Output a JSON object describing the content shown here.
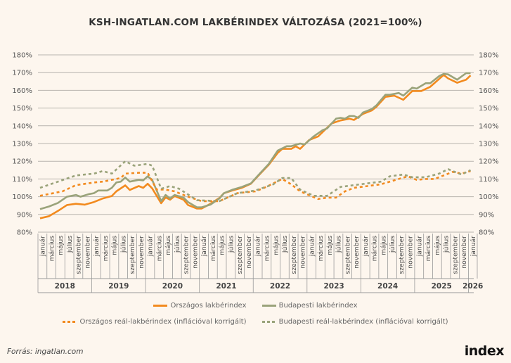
{
  "chart_data": {
    "type": "line",
    "title": "KSH-INGATLAN.COM LAKBÉRINDEX VÁLTOZÁSA (2021=100%)",
    "x_start": "2018-01",
    "x_end": "2026-01",
    "ylim": [
      80,
      180
    ],
    "y_ticks": [
      "80%",
      "90%",
      "100%",
      "110%",
      "120%",
      "130%",
      "140%",
      "150%",
      "160%",
      "170%",
      "180%"
    ],
    "grid": "horizontal",
    "legend_placement": "bottom",
    "month_labels": [
      "január",
      "március",
      "május",
      "július",
      "szeptember",
      "november"
    ],
    "years": [
      "2018",
      "2019",
      "2020",
      "2021",
      "2022",
      "2023",
      "2024",
      "2025",
      "2026"
    ],
    "series": [
      {
        "name": "Országos lakbérindex",
        "color": "#f28a1e",
        "style": "solid",
        "points": [
          [
            "2018-01",
            87.8
          ],
          [
            "2018-03",
            89
          ],
          [
            "2018-05",
            92
          ],
          [
            "2018-07",
            95.3
          ],
          [
            "2018-09",
            96
          ],
          [
            "2018-11",
            95.5
          ],
          [
            "2019-01",
            97
          ],
          [
            "2019-03",
            99
          ],
          [
            "2019-05",
            100.4
          ],
          [
            "2019-06",
            103
          ],
          [
            "2019-08",
            106.4
          ],
          [
            "2019-09",
            103.8
          ],
          [
            "2019-11",
            106
          ],
          [
            "2019-12",
            105
          ],
          [
            "2020-01",
            107.3
          ],
          [
            "2020-02",
            104.7
          ],
          [
            "2020-04",
            96.3
          ],
          [
            "2020-05",
            99.6
          ],
          [
            "2020-06",
            98.3
          ],
          [
            "2020-07",
            100.4
          ],
          [
            "2020-09",
            98.3
          ],
          [
            "2020-10",
            95.3
          ],
          [
            "2020-12",
            93.3
          ],
          [
            "2021-01",
            93.3
          ],
          [
            "2021-03",
            96
          ],
          [
            "2021-05",
            99.3
          ],
          [
            "2021-06",
            102
          ],
          [
            "2021-08",
            103.6
          ],
          [
            "2021-10",
            105
          ],
          [
            "2021-12",
            107.3
          ],
          [
            "2022-02",
            112.7
          ],
          [
            "2022-04",
            118
          ],
          [
            "2022-06",
            124.7
          ],
          [
            "2022-07",
            127
          ],
          [
            "2022-09",
            127
          ],
          [
            "2022-10",
            128.4
          ],
          [
            "2022-11",
            127
          ],
          [
            "2023-01",
            132
          ],
          [
            "2023-03",
            134
          ],
          [
            "2023-06",
            141.3
          ],
          [
            "2023-08",
            143
          ],
          [
            "2023-10",
            144
          ],
          [
            "2023-11",
            143.3
          ],
          [
            "2024-01",
            146.7
          ],
          [
            "2024-03",
            148.7
          ],
          [
            "2024-04",
            150.7
          ],
          [
            "2024-06",
            156.3
          ],
          [
            "2024-08",
            157
          ],
          [
            "2024-10",
            154.7
          ],
          [
            "2024-12",
            159.6
          ],
          [
            "2025-02",
            159.6
          ],
          [
            "2025-04",
            162
          ],
          [
            "2025-07",
            168.7
          ],
          [
            "2025-08",
            166.7
          ],
          [
            "2025-10",
            164.3
          ],
          [
            "2025-12",
            166
          ],
          [
            "2026-01",
            168.4
          ]
        ]
      },
      {
        "name": "Budapesti lakbérindex",
        "color": "#9aa37a",
        "style": "solid",
        "points": [
          [
            "2018-01",
            93
          ],
          [
            "2018-03",
            94.5
          ],
          [
            "2018-05",
            96.5
          ],
          [
            "2018-07",
            100
          ],
          [
            "2018-09",
            101
          ],
          [
            "2018-10",
            100
          ],
          [
            "2018-12",
            101.5
          ],
          [
            "2019-01",
            102
          ],
          [
            "2019-02",
            103.5
          ],
          [
            "2019-04",
            103.5
          ],
          [
            "2019-05",
            105
          ],
          [
            "2019-06",
            108
          ],
          [
            "2019-07",
            108.5
          ],
          [
            "2019-08",
            110.8
          ],
          [
            "2019-09",
            108.5
          ],
          [
            "2019-11",
            109.5
          ],
          [
            "2019-12",
            109.2
          ],
          [
            "2020-01",
            111.5
          ],
          [
            "2020-02",
            109.5
          ],
          [
            "2020-04",
            97.5
          ],
          [
            "2020-05",
            101
          ],
          [
            "2020-06",
            99
          ],
          [
            "2020-07",
            101
          ],
          [
            "2020-09",
            99.5
          ],
          [
            "2020-10",
            97
          ],
          [
            "2020-12",
            94
          ],
          [
            "2021-01",
            94
          ],
          [
            "2021-03",
            95.5
          ],
          [
            "2021-05",
            99
          ],
          [
            "2021-06",
            102
          ],
          [
            "2021-08",
            104
          ],
          [
            "2021-10",
            105.5
          ],
          [
            "2021-12",
            107.5
          ],
          [
            "2022-02",
            113
          ],
          [
            "2022-04",
            118.5
          ],
          [
            "2022-06",
            126
          ],
          [
            "2022-08",
            128.5
          ],
          [
            "2022-09",
            128.5
          ],
          [
            "2022-11",
            130
          ],
          [
            "2022-12",
            129.5
          ],
          [
            "2023-02",
            134
          ],
          [
            "2023-04",
            137.5
          ],
          [
            "2023-05",
            138.5
          ],
          [
            "2023-07",
            144
          ],
          [
            "2023-08",
            144.5
          ],
          [
            "2023-09",
            144
          ],
          [
            "2023-10",
            145.5
          ],
          [
            "2023-11",
            145.5
          ],
          [
            "2023-12",
            144.5
          ],
          [
            "2024-01",
            147.5
          ],
          [
            "2024-03",
            149.5
          ],
          [
            "2024-04",
            151.5
          ],
          [
            "2024-06",
            157.5
          ],
          [
            "2024-07",
            157.5
          ],
          [
            "2024-09",
            158.5
          ],
          [
            "2024-10",
            157
          ],
          [
            "2024-12",
            161.5
          ],
          [
            "2025-01",
            161
          ],
          [
            "2025-03",
            164
          ],
          [
            "2025-04",
            164
          ],
          [
            "2025-06",
            168
          ],
          [
            "2025-07",
            169.3
          ],
          [
            "2025-08",
            169
          ],
          [
            "2025-10",
            166
          ],
          [
            "2025-12",
            169.7
          ],
          [
            "2026-01",
            169.7
          ]
        ]
      },
      {
        "name": "Országos reál-lakbérindex (inflációval korrigált)",
        "color": "#f28a1e",
        "style": "dotted",
        "points": [
          [
            "2018-01",
            100.5
          ],
          [
            "2018-06",
            103
          ],
          [
            "2018-09",
            106.5
          ],
          [
            "2019-01",
            108
          ],
          [
            "2019-03",
            108.5
          ],
          [
            "2019-07",
            110.5
          ],
          [
            "2019-08",
            113
          ],
          [
            "2019-11",
            113.5
          ],
          [
            "2020-01",
            113.5
          ],
          [
            "2020-03",
            104
          ],
          [
            "2020-05",
            104
          ],
          [
            "2020-07",
            103
          ],
          [
            "2020-10",
            100
          ],
          [
            "2021-01",
            97.5
          ],
          [
            "2021-05",
            97.5
          ],
          [
            "2021-09",
            102
          ],
          [
            "2022-01",
            103
          ],
          [
            "2022-03",
            105
          ],
          [
            "2022-07",
            110
          ],
          [
            "2022-09",
            107
          ],
          [
            "2022-11",
            103
          ],
          [
            "2023-03",
            98.7
          ],
          [
            "2023-05",
            99.5
          ],
          [
            "2023-07",
            99.5
          ],
          [
            "2023-09",
            103
          ],
          [
            "2023-11",
            105
          ],
          [
            "2024-02",
            106
          ],
          [
            "2024-05",
            107
          ],
          [
            "2024-09",
            110
          ],
          [
            "2024-11",
            111.5
          ],
          [
            "2025-01",
            109.5
          ],
          [
            "2025-03",
            110
          ],
          [
            "2025-05",
            110
          ],
          [
            "2025-07",
            112
          ],
          [
            "2025-09",
            114
          ],
          [
            "2025-11",
            113
          ],
          [
            "2026-01",
            114.5
          ]
        ]
      },
      {
        "name": "Budapesti reál-lakbérindex (inflációval korrigált)",
        "color": "#9aa37a",
        "style": "dotted",
        "points": [
          [
            "2018-01",
            105
          ],
          [
            "2018-09",
            112
          ],
          [
            "2019-01",
            113
          ],
          [
            "2019-03",
            114.5
          ],
          [
            "2019-05",
            113
          ],
          [
            "2019-08",
            120
          ],
          [
            "2019-10",
            117.5
          ],
          [
            "2020-01",
            118.5
          ],
          [
            "2020-02",
            117.5
          ],
          [
            "2020-04",
            104.5
          ],
          [
            "2020-06",
            106
          ],
          [
            "2020-08",
            104.5
          ],
          [
            "2020-12",
            98
          ],
          [
            "2021-05",
            97.5
          ],
          [
            "2021-09",
            102
          ],
          [
            "2022-01",
            103.5
          ],
          [
            "2022-05",
            107
          ],
          [
            "2022-07",
            110.5
          ],
          [
            "2022-09",
            110.5
          ],
          [
            "2022-11",
            104
          ],
          [
            "2023-02",
            100.5
          ],
          [
            "2023-05",
            100.5
          ],
          [
            "2023-08",
            105.5
          ],
          [
            "2023-11",
            106.5
          ],
          [
            "2024-02",
            107.5
          ],
          [
            "2024-05",
            108.5
          ],
          [
            "2024-07",
            111.5
          ],
          [
            "2024-10",
            112.5
          ],
          [
            "2024-12",
            111
          ],
          [
            "2025-03",
            111
          ],
          [
            "2025-06",
            113
          ],
          [
            "2025-08",
            115.5
          ],
          [
            "2025-11",
            112.5
          ],
          [
            "2026-01",
            115
          ]
        ]
      }
    ]
  },
  "source": "Forrás: ingatlan.com",
  "logo": "index"
}
